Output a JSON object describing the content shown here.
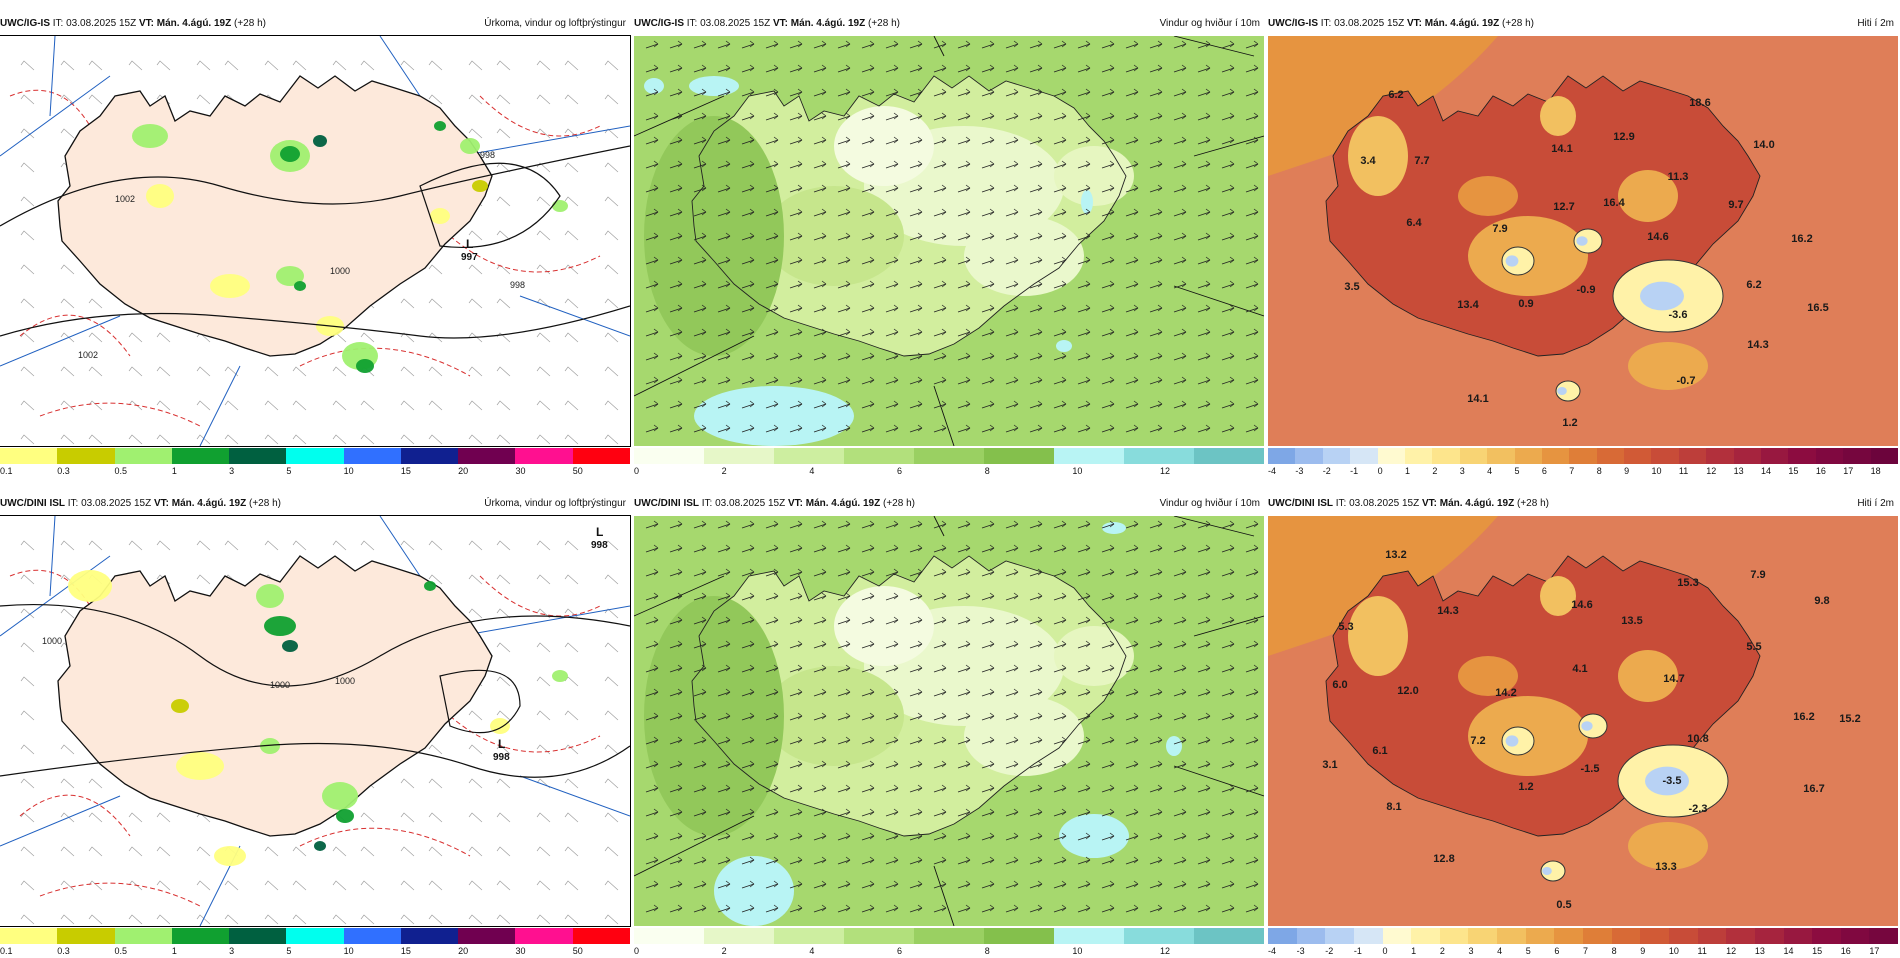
{
  "header": {
    "it_prefix": "IT: 03.08.2025 15Z",
    "vt_label": "VT: Mán. 4.ágú. 19Z",
    "lead": "(+28 h)"
  },
  "rows": [
    {
      "model": "UWC/IG-IS"
    },
    {
      "model": "UWC/DINI ISL"
    }
  ],
  "panels": {
    "precip": {
      "title": "Úrkoma, vindur og loftþrýstingur",
      "scale_colors": [
        "#ffff80",
        "#c8cc00",
        "#a0f070",
        "#10a030",
        "#006040",
        "#00ffee",
        "#3070ff",
        "#102090",
        "#700050",
        "#ff1090",
        "#ff0010"
      ],
      "scale_ticks": [
        "0.1",
        "0.3",
        "0.5",
        "1",
        "3",
        "5",
        "10",
        "15",
        "20",
        "30",
        "50"
      ],
      "ig_lows": [
        {
          "symbol": "L",
          "value": "997"
        }
      ],
      "ig_isobars": [
        "998",
        "1000",
        "998",
        "1002",
        "1002"
      ],
      "dini_lows": [
        {
          "symbol": "L",
          "value": "998"
        },
        {
          "symbol": "L",
          "value": "998"
        }
      ],
      "dini_isobars": [
        "1000",
        "1000",
        "1000"
      ]
    },
    "wind": {
      "title": "Vindur og hviður í 10m",
      "scale_colors": [
        "#fafff0",
        "#e6f7c8",
        "#cdeea0",
        "#b2e07c",
        "#9ad062",
        "#84c04c",
        "#b8f4f4",
        "#88dcdc",
        "#6cc4c4"
      ],
      "scale_ticks": [
        "0",
        "2",
        "4",
        "6",
        "8",
        "10",
        "12"
      ]
    },
    "temp": {
      "title": "Hiti í 2m",
      "scale_colors": [
        "#7ea7e6",
        "#9cbcee",
        "#b8d2f4",
        "#d6e6f6",
        "#fffad0",
        "#fff2a8",
        "#fde58c",
        "#f8d474",
        "#f2c060",
        "#ecaa4e",
        "#e69440",
        "#df7e38",
        "#d86a36",
        "#d15a36",
        "#c84c38",
        "#bd3e3a",
        "#b2303c",
        "#a6243e",
        "#981840"
      ],
      "ig_ticks": [
        "-4",
        "-3",
        "-2",
        "-1",
        "0",
        "1",
        "2",
        "3",
        "4",
        "5",
        "6",
        "7",
        "8",
        "9",
        "10",
        "11",
        "12",
        "13",
        "14",
        "15",
        "16",
        "17",
        "18"
      ],
      "dini_ticks": [
        "-4",
        "-3",
        "-2",
        "-1",
        "0",
        "1",
        "2",
        "3",
        "4",
        "5",
        "6",
        "7",
        "8",
        "9",
        "10",
        "11",
        "12",
        "13",
        "14",
        "15",
        "16",
        "17"
      ],
      "ig_values": [
        "6.2",
        "18.6",
        "3.4",
        "7.7",
        "12.9",
        "14.1",
        "14.0",
        "11.3",
        "9.7",
        "12.7",
        "16.4",
        "6.4",
        "7.9",
        "14.6",
        "16.2",
        "3.5",
        "6.2",
        "-0.9",
        "0.9",
        "13.4",
        "-3.6",
        "16.5",
        "14.3",
        "-0.7",
        "14.1",
        "1.2"
      ],
      "dini_values": [
        "13.2",
        "7.9",
        "15.3",
        "9.8",
        "14.3",
        "14.6",
        "13.5",
        "5.3",
        "5.5",
        "4.1",
        "14.7",
        "6.0",
        "12.0",
        "14.2",
        "16.2",
        "15.2",
        "7.2",
        "10.8",
        "6.1",
        "3.1",
        "-1.5",
        "1.2",
        "-3.5",
        "16.7",
        "8.1",
        "-2.3",
        "12.8",
        "13.3",
        "0.5"
      ]
    }
  }
}
